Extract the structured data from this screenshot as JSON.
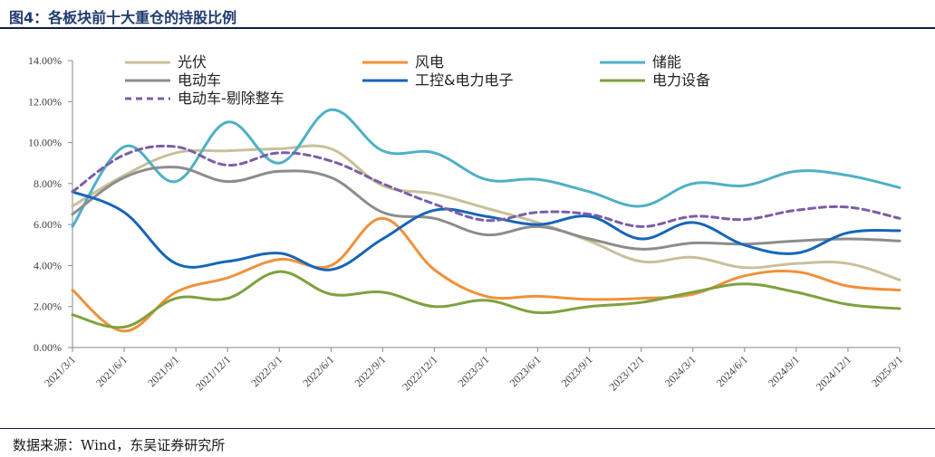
{
  "header": {
    "title": "图4：各板块前十大重仓的持股比例"
  },
  "footer": {
    "source": "数据来源：Wind，东吴证券研究所"
  },
  "chart_data": {
    "type": "line",
    "title": "图4：各板块前十大重仓的持股比例",
    "xlabel": "",
    "ylabel": "",
    "ylim": [
      0,
      14
    ],
    "y_ticks": [
      "0.00%",
      "2.00%",
      "4.00%",
      "6.00%",
      "8.00%",
      "10.00%",
      "12.00%",
      "14.00%"
    ],
    "y_tick_values": [
      0,
      2,
      4,
      6,
      8,
      10,
      12,
      14
    ],
    "categories": [
      "2021/3/1",
      "2021/6/1",
      "2021/9/1",
      "2021/12/1",
      "2022/3/1",
      "2022/6/1",
      "2022/9/1",
      "2022/12/1",
      "2023/3/1",
      "2023/6/1",
      "2023/9/1",
      "2023/12/1",
      "2024/3/1",
      "2024/6/1",
      "2024/9/1",
      "2024/12/1",
      "2025/3/1"
    ],
    "grid": false,
    "legend_position": "top",
    "series": [
      {
        "name": "光伏",
        "color": "#c8c09a",
        "dash": false,
        "values": [
          6.9,
          8.4,
          9.5,
          9.6,
          9.7,
          9.7,
          7.9,
          7.5,
          6.8,
          6.1,
          5.2,
          4.2,
          4.4,
          3.9,
          4.1,
          4.1,
          3.3
        ]
      },
      {
        "name": "风电",
        "color": "#f0913a",
        "dash": false,
        "values": [
          2.8,
          0.8,
          2.7,
          3.4,
          4.3,
          4.0,
          6.3,
          3.8,
          2.5,
          2.5,
          2.35,
          2.4,
          2.6,
          3.5,
          3.7,
          3.0,
          2.8
        ]
      },
      {
        "name": "储能",
        "color": "#4fb0c6",
        "dash": false,
        "values": [
          5.9,
          9.8,
          8.1,
          11.0,
          9.0,
          11.6,
          9.6,
          9.5,
          8.2,
          8.2,
          7.6,
          6.9,
          8.0,
          7.9,
          8.6,
          8.4,
          7.8
        ]
      },
      {
        "name": "电动车",
        "color": "#8c8c8c",
        "dash": false,
        "values": [
          6.5,
          8.3,
          8.8,
          8.1,
          8.6,
          8.3,
          6.6,
          6.3,
          5.5,
          5.9,
          5.3,
          4.8,
          5.1,
          5.05,
          5.2,
          5.3,
          5.2
        ]
      },
      {
        "name": "工控&电力电子",
        "color": "#1565b8",
        "dash": false,
        "values": [
          7.6,
          6.6,
          4.1,
          4.2,
          4.6,
          3.8,
          5.3,
          6.7,
          6.4,
          6.0,
          6.4,
          5.3,
          6.1,
          5.0,
          4.6,
          5.6,
          5.7
        ]
      },
      {
        "name": "电力设备",
        "color": "#7da23f",
        "dash": false,
        "values": [
          1.6,
          1.0,
          2.4,
          2.4,
          3.7,
          2.6,
          2.7,
          2.0,
          2.3,
          1.7,
          2.0,
          2.2,
          2.7,
          3.1,
          2.7,
          2.1,
          1.9
        ]
      },
      {
        "name": "电动车-剔除整车",
        "color": "#7b5ea7",
        "dash": true,
        "values": [
          7.6,
          9.4,
          9.8,
          8.9,
          9.5,
          9.1,
          8.0,
          7.0,
          6.2,
          6.6,
          6.5,
          5.9,
          6.4,
          6.25,
          6.7,
          6.85,
          6.3
        ]
      }
    ]
  }
}
